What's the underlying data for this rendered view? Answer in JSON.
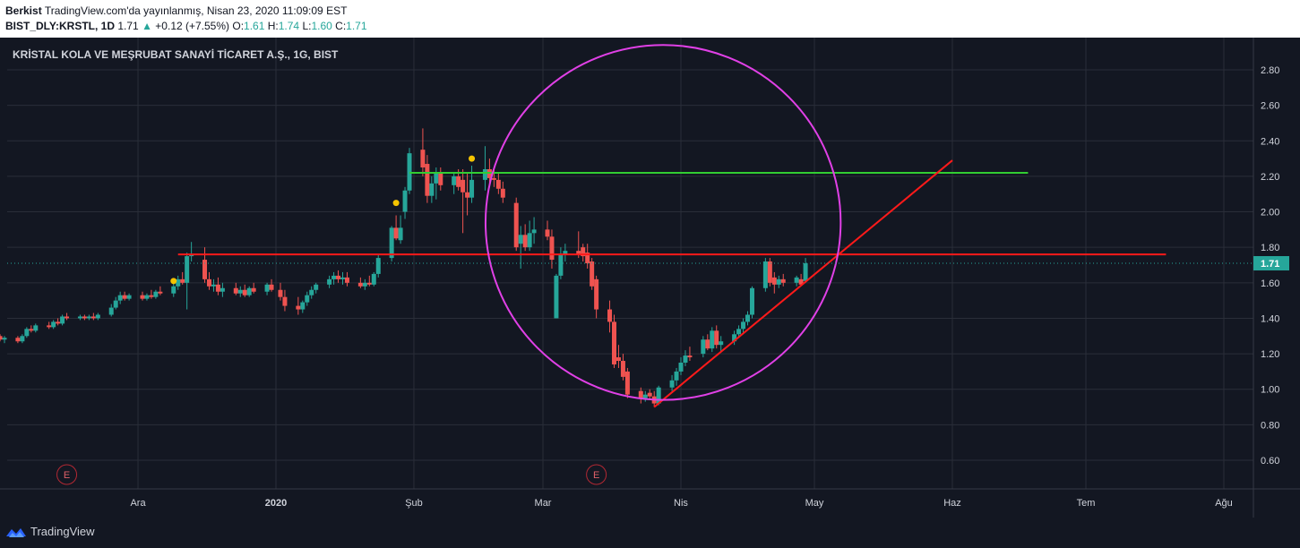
{
  "header": {
    "author": "Berkist",
    "published": "TradingView.com'da yayınlanmış, Nisan 23, 2020 11:09:09 EST",
    "symbol": "BIST_DLY:KRSTL, 1D",
    "last": "1.71",
    "change_arrow": "▲",
    "change": "+0.12 (+7.55%)",
    "o_label": "O:",
    "o_value": "1.61",
    "h_label": "H:",
    "h_value": "1.74",
    "l_label": "L:",
    "l_value": "1.60",
    "c_label": "C:",
    "c_value": "1.71"
  },
  "footer": {
    "brand": "TradingView"
  },
  "colors": {
    "background": "#131722",
    "grid": "#2a2e39",
    "up": "#26a69a",
    "down": "#ef5350",
    "circle": "#e040e6",
    "green_line": "#32cd32",
    "red_line": "#ff1a1a",
    "dot": "#f5c400"
  },
  "chart_data": {
    "type": "candlestick",
    "title": "KRİSTAL KOLA VE MEŞRUBAT SANAYİ TİCARET A.Ş., 1G, BIST",
    "ylim": [
      0.45,
      2.97
    ],
    "y_ticks": [
      "2.80",
      "2.60",
      "2.40",
      "2.20",
      "2.00",
      "1.80",
      "1.60",
      "1.40",
      "1.20",
      "1.00",
      "0.80",
      "0.60"
    ],
    "y_tick_values": [
      2.8,
      2.6,
      2.4,
      2.2,
      2.0,
      1.8,
      1.6,
      1.4,
      1.2,
      1.0,
      0.8,
      0.6
    ],
    "last_price_label": "1.71",
    "last_price": 1.71,
    "x_labels": [
      "Ara",
      "2020",
      "Şub",
      "Mar",
      "Nis",
      "May",
      "Haz",
      "Tem",
      "Ağu"
    ],
    "x_label_dates": [
      "2019-12-01",
      "2020-01-01",
      "2020-02-01",
      "2020-03-01",
      "2020-04-01",
      "2020-05-01",
      "2020-06-01",
      "2020-07-01",
      "2020-08-01"
    ],
    "candles": [
      {
        "t": "2019-10-22",
        "o": 1.19,
        "h": 1.21,
        "l": 1.17,
        "c": 1.2
      },
      {
        "t": "2019-10-23",
        "o": 1.2,
        "h": 1.24,
        "l": 1.19,
        "c": 1.23
      },
      {
        "t": "2019-10-24",
        "o": 1.23,
        "h": 1.25,
        "l": 1.21,
        "c": 1.22
      },
      {
        "t": "2019-10-25",
        "o": 1.22,
        "h": 1.25,
        "l": 1.21,
        "c": 1.24
      },
      {
        "t": "2019-10-28",
        "o": 1.24,
        "h": 1.29,
        "l": 1.23,
        "c": 1.28
      },
      {
        "t": "2019-10-30",
        "o": 1.28,
        "h": 1.32,
        "l": 1.27,
        "c": 1.3
      },
      {
        "t": "2019-10-31",
        "o": 1.3,
        "h": 1.31,
        "l": 1.27,
        "c": 1.28
      },
      {
        "t": "2019-11-01",
        "o": 1.28,
        "h": 1.3,
        "l": 1.26,
        "c": 1.29
      },
      {
        "t": "2019-11-04",
        "o": 1.29,
        "h": 1.3,
        "l": 1.26,
        "c": 1.27
      },
      {
        "t": "2019-11-05",
        "o": 1.27,
        "h": 1.31,
        "l": 1.26,
        "c": 1.3
      },
      {
        "t": "2019-11-06",
        "o": 1.3,
        "h": 1.35,
        "l": 1.29,
        "c": 1.34
      },
      {
        "t": "2019-11-07",
        "o": 1.34,
        "h": 1.36,
        "l": 1.32,
        "c": 1.33
      },
      {
        "t": "2019-11-08",
        "o": 1.33,
        "h": 1.37,
        "l": 1.32,
        "c": 1.36
      },
      {
        "t": "2019-11-11",
        "o": 1.36,
        "h": 1.38,
        "l": 1.34,
        "c": 1.35
      },
      {
        "t": "2019-11-12",
        "o": 1.35,
        "h": 1.39,
        "l": 1.34,
        "c": 1.38
      },
      {
        "t": "2019-11-13",
        "o": 1.38,
        "h": 1.4,
        "l": 1.36,
        "c": 1.37
      },
      {
        "t": "2019-11-14",
        "o": 1.37,
        "h": 1.42,
        "l": 1.36,
        "c": 1.41
      },
      {
        "t": "2019-11-15",
        "o": 1.41,
        "h": 1.43,
        "l": 1.39,
        "c": 1.4
      },
      {
        "t": "2019-11-18",
        "o": 1.4,
        "h": 1.42,
        "l": 1.39,
        "c": 1.41
      },
      {
        "t": "2019-11-19",
        "o": 1.41,
        "h": 1.42,
        "l": 1.39,
        "c": 1.4
      },
      {
        "t": "2019-11-20",
        "o": 1.4,
        "h": 1.42,
        "l": 1.39,
        "c": 1.41
      },
      {
        "t": "2019-11-21",
        "o": 1.41,
        "h": 1.43,
        "l": 1.39,
        "c": 1.4
      },
      {
        "t": "2019-11-22",
        "o": 1.4,
        "h": 1.43,
        "l": 1.39,
        "c": 1.42
      },
      {
        "t": "2019-11-25",
        "o": 1.42,
        "h": 1.48,
        "l": 1.41,
        "c": 1.46
      },
      {
        "t": "2019-11-26",
        "o": 1.46,
        "h": 1.52,
        "l": 1.45,
        "c": 1.5
      },
      {
        "t": "2019-11-27",
        "o": 1.5,
        "h": 1.55,
        "l": 1.48,
        "c": 1.53
      },
      {
        "t": "2019-11-28",
        "o": 1.53,
        "h": 1.55,
        "l": 1.5,
        "c": 1.51
      },
      {
        "t": "2019-11-29",
        "o": 1.51,
        "h": 1.54,
        "l": 1.5,
        "c": 1.53
      },
      {
        "t": "2019-12-02",
        "o": 1.53,
        "h": 1.55,
        "l": 1.5,
        "c": 1.51
      },
      {
        "t": "2019-12-03",
        "o": 1.51,
        "h": 1.54,
        "l": 1.5,
        "c": 1.53
      },
      {
        "t": "2019-12-04",
        "o": 1.53,
        "h": 1.56,
        "l": 1.51,
        "c": 1.52
      },
      {
        "t": "2019-12-05",
        "o": 1.52,
        "h": 1.56,
        "l": 1.51,
        "c": 1.55
      },
      {
        "t": "2019-12-06",
        "o": 1.55,
        "h": 1.58,
        "l": 1.53,
        "c": 1.54
      },
      {
        "t": "2019-12-09",
        "o": 1.54,
        "h": 1.6,
        "l": 1.52,
        "c": 1.58
      },
      {
        "t": "2019-12-10",
        "o": 1.58,
        "h": 1.64,
        "l": 1.56,
        "c": 1.62
      },
      {
        "t": "2019-12-11",
        "o": 1.62,
        "h": 1.66,
        "l": 1.59,
        "c": 1.6
      },
      {
        "t": "2019-12-12",
        "o": 1.6,
        "h": 1.77,
        "l": 1.45,
        "c": 1.75
      },
      {
        "t": "2019-12-13",
        "o": 1.75,
        "h": 1.83,
        "l": 1.72,
        "c": 1.76
      },
      {
        "t": "2019-12-16",
        "o": 1.73,
        "h": 1.8,
        "l": 1.6,
        "c": 1.62
      },
      {
        "t": "2019-12-17",
        "o": 1.62,
        "h": 1.66,
        "l": 1.56,
        "c": 1.58
      },
      {
        "t": "2019-12-18",
        "o": 1.58,
        "h": 1.62,
        "l": 1.55,
        "c": 1.59
      },
      {
        "t": "2019-12-19",
        "o": 1.59,
        "h": 1.63,
        "l": 1.53,
        "c": 1.55
      },
      {
        "t": "2019-12-20",
        "o": 1.55,
        "h": 1.6,
        "l": 1.52,
        "c": 1.57
      },
      {
        "t": "2019-12-23",
        "o": 1.57,
        "h": 1.6,
        "l": 1.53,
        "c": 1.54
      },
      {
        "t": "2019-12-24",
        "o": 1.54,
        "h": 1.58,
        "l": 1.52,
        "c": 1.56
      },
      {
        "t": "2019-12-25",
        "o": 1.56,
        "h": 1.59,
        "l": 1.52,
        "c": 1.53
      },
      {
        "t": "2019-12-26",
        "o": 1.53,
        "h": 1.58,
        "l": 1.52,
        "c": 1.57
      },
      {
        "t": "2019-12-27",
        "o": 1.57,
        "h": 1.6,
        "l": 1.54,
        "c": 1.55
      },
      {
        "t": "2019-12-30",
        "o": 1.55,
        "h": 1.6,
        "l": 1.53,
        "c": 1.59
      },
      {
        "t": "2019-12-31",
        "o": 1.59,
        "h": 1.62,
        "l": 1.55,
        "c": 1.56
      },
      {
        "t": "2020-01-02",
        "o": 1.56,
        "h": 1.6,
        "l": 1.5,
        "c": 1.52
      },
      {
        "t": "2020-01-03",
        "o": 1.52,
        "h": 1.56,
        "l": 1.44,
        "c": 1.47
      },
      {
        "t": "2020-01-06",
        "o": 1.47,
        "h": 1.52,
        "l": 1.42,
        "c": 1.45
      },
      {
        "t": "2020-01-07",
        "o": 1.45,
        "h": 1.5,
        "l": 1.43,
        "c": 1.49
      },
      {
        "t": "2020-01-08",
        "o": 1.49,
        "h": 1.55,
        "l": 1.47,
        "c": 1.53
      },
      {
        "t": "2020-01-09",
        "o": 1.53,
        "h": 1.58,
        "l": 1.51,
        "c": 1.56
      },
      {
        "t": "2020-01-10",
        "o": 1.56,
        "h": 1.6,
        "l": 1.54,
        "c": 1.59
      },
      {
        "t": "2020-01-13",
        "o": 1.59,
        "h": 1.64,
        "l": 1.57,
        "c": 1.62
      },
      {
        "t": "2020-01-14",
        "o": 1.62,
        "h": 1.66,
        "l": 1.59,
        "c": 1.64
      },
      {
        "t": "2020-01-15",
        "o": 1.64,
        "h": 1.67,
        "l": 1.6,
        "c": 1.62
      },
      {
        "t": "2020-01-16",
        "o": 1.62,
        "h": 1.66,
        "l": 1.59,
        "c": 1.63
      },
      {
        "t": "2020-01-17",
        "o": 1.63,
        "h": 1.66,
        "l": 1.58,
        "c": 1.6
      },
      {
        "t": "2020-01-20",
        "o": 1.6,
        "h": 1.63,
        "l": 1.57,
        "c": 1.58
      },
      {
        "t": "2020-01-21",
        "o": 1.58,
        "h": 1.62,
        "l": 1.56,
        "c": 1.6
      },
      {
        "t": "2020-01-22",
        "o": 1.6,
        "h": 1.64,
        "l": 1.58,
        "c": 1.59
      },
      {
        "t": "2020-01-23",
        "o": 1.59,
        "h": 1.66,
        "l": 1.58,
        "c": 1.65
      },
      {
        "t": "2020-01-24",
        "o": 1.65,
        "h": 1.76,
        "l": 1.63,
        "c": 1.74
      },
      {
        "t": "2020-01-27",
        "o": 1.74,
        "h": 1.92,
        "l": 1.72,
        "c": 1.91
      },
      {
        "t": "2020-01-28",
        "o": 1.91,
        "h": 1.98,
        "l": 1.84,
        "c": 1.85
      },
      {
        "t": "2020-01-29",
        "o": 1.84,
        "h": 1.98,
        "l": 1.82,
        "c": 1.91
      },
      {
        "t": "2020-01-30",
        "o": 2.0,
        "h": 2.14,
        "l": 1.96,
        "c": 2.12
      },
      {
        "t": "2020-01-31",
        "o": 2.12,
        "h": 2.36,
        "l": 2.1,
        "c": 2.33
      },
      {
        "t": "2020-02-03",
        "o": 2.35,
        "h": 2.47,
        "l": 2.2,
        "c": 2.25
      },
      {
        "t": "2020-02-04",
        "o": 2.27,
        "h": 2.32,
        "l": 2.05,
        "c": 2.09
      },
      {
        "t": "2020-02-05",
        "o": 2.09,
        "h": 2.2,
        "l": 2.05,
        "c": 2.16
      },
      {
        "t": "2020-02-06",
        "o": 2.16,
        "h": 2.25,
        "l": 2.07,
        "c": 2.22
      },
      {
        "t": "2020-02-07",
        "o": 2.22,
        "h": 2.25,
        "l": 2.12,
        "c": 2.15
      },
      {
        "t": "2020-02-10",
        "o": 2.15,
        "h": 2.22,
        "l": 2.1,
        "c": 2.2
      },
      {
        "t": "2020-02-11",
        "o": 2.2,
        "h": 2.24,
        "l": 2.12,
        "c": 2.14
      },
      {
        "t": "2020-02-12",
        "o": 2.18,
        "h": 2.24,
        "l": 1.88,
        "c": 2.11
      },
      {
        "t": "2020-02-13",
        "o": 2.11,
        "h": 2.22,
        "l": 1.98,
        "c": 2.08
      },
      {
        "t": "2020-02-14",
        "o": 2.08,
        "h": 2.26,
        "l": 2.05,
        "c": 2.18
      },
      {
        "t": "2020-02-17",
        "o": 2.18,
        "h": 2.37,
        "l": 2.12,
        "c": 2.24
      },
      {
        "t": "2020-02-18",
        "o": 2.24,
        "h": 2.3,
        "l": 2.15,
        "c": 2.19
      },
      {
        "t": "2020-02-19",
        "o": 2.19,
        "h": 2.24,
        "l": 2.14,
        "c": 2.18
      },
      {
        "t": "2020-02-20",
        "o": 2.18,
        "h": 2.22,
        "l": 2.1,
        "c": 2.13
      },
      {
        "t": "2020-02-21",
        "o": 2.13,
        "h": 2.17,
        "l": 2.05,
        "c": 2.08
      },
      {
        "t": "2020-02-24",
        "o": 2.05,
        "h": 2.08,
        "l": 1.78,
        "c": 1.8
      },
      {
        "t": "2020-02-25",
        "o": 1.82,
        "h": 1.92,
        "l": 1.68,
        "c": 1.87
      },
      {
        "t": "2020-02-26",
        "o": 1.87,
        "h": 1.93,
        "l": 1.78,
        "c": 1.8
      },
      {
        "t": "2020-02-27",
        "o": 1.8,
        "h": 1.95,
        "l": 1.78,
        "c": 1.88
      },
      {
        "t": "2020-02-28",
        "o": 1.88,
        "h": 1.97,
        "l": 1.82,
        "c": 1.9
      },
      {
        "t": "2020-03-02",
        "o": 1.9,
        "h": 1.95,
        "l": 1.84,
        "c": 1.86
      },
      {
        "t": "2020-03-03",
        "o": 1.86,
        "h": 1.9,
        "l": 1.68,
        "c": 1.73
      },
      {
        "t": "2020-03-04",
        "o": 1.4,
        "h": 1.65,
        "l": 1.4,
        "c": 1.64
      },
      {
        "t": "2020-03-05",
        "o": 1.64,
        "h": 1.8,
        "l": 1.62,
        "c": 1.76
      },
      {
        "t": "2020-03-06",
        "o": 1.76,
        "h": 1.82,
        "l": 1.72,
        "c": 1.78
      },
      {
        "t": "2020-03-09",
        "o": 1.78,
        "h": 1.89,
        "l": 1.74,
        "c": 1.76
      },
      {
        "t": "2020-03-10",
        "o": 1.8,
        "h": 1.82,
        "l": 1.72,
        "c": 1.75
      },
      {
        "t": "2020-03-11",
        "o": 1.77,
        "h": 1.82,
        "l": 1.68,
        "c": 1.71
      },
      {
        "t": "2020-03-12",
        "o": 1.72,
        "h": 1.74,
        "l": 1.56,
        "c": 1.58
      },
      {
        "t": "2020-03-13",
        "o": 1.62,
        "h": 1.64,
        "l": 1.4,
        "c": 1.45
      },
      {
        "t": "2020-03-16",
        "o": 1.45,
        "h": 1.5,
        "l": 1.32,
        "c": 1.38
      },
      {
        "t": "2020-03-17",
        "o": 1.38,
        "h": 1.42,
        "l": 1.12,
        "c": 1.14
      },
      {
        "t": "2020-03-18",
        "o": 1.18,
        "h": 1.25,
        "l": 1.12,
        "c": 1.16
      },
      {
        "t": "2020-03-19",
        "o": 1.16,
        "h": 1.2,
        "l": 1.05,
        "c": 1.07
      },
      {
        "t": "2020-03-20",
        "o": 1.1,
        "h": 1.12,
        "l": 0.95,
        "c": 0.97
      },
      {
        "t": "2020-03-23",
        "o": 0.99,
        "h": 1.01,
        "l": 0.92,
        "c": 0.95
      },
      {
        "t": "2020-03-24",
        "o": 0.95,
        "h": 0.99,
        "l": 0.93,
        "c": 0.97
      },
      {
        "t": "2020-03-25",
        "o": 0.98,
        "h": 1.0,
        "l": 0.94,
        "c": 0.96
      },
      {
        "t": "2020-03-26",
        "o": 0.96,
        "h": 0.99,
        "l": 0.9,
        "c": 0.92
      },
      {
        "t": "2020-03-27",
        "o": 0.92,
        "h": 1.02,
        "l": 0.91,
        "c": 1.01
      },
      {
        "t": "2020-03-30",
        "o": 1.01,
        "h": 1.08,
        "l": 0.99,
        "c": 1.05
      },
      {
        "t": "2020-03-31",
        "o": 1.05,
        "h": 1.12,
        "l": 1.02,
        "c": 1.1
      },
      {
        "t": "2020-04-01",
        "o": 1.1,
        "h": 1.18,
        "l": 1.08,
        "c": 1.15
      },
      {
        "t": "2020-04-02",
        "o": 1.15,
        "h": 1.22,
        "l": 1.13,
        "c": 1.19
      },
      {
        "t": "2020-04-03",
        "o": 1.19,
        "h": 1.24,
        "l": 1.16,
        "c": 1.18
      },
      {
        "t": "2020-04-06",
        "o": 1.2,
        "h": 1.3,
        "l": 1.18,
        "c": 1.28
      },
      {
        "t": "2020-04-07",
        "o": 1.28,
        "h": 1.31,
        "l": 1.22,
        "c": 1.23
      },
      {
        "t": "2020-04-08",
        "o": 1.23,
        "h": 1.35,
        "l": 1.21,
        "c": 1.33
      },
      {
        "t": "2020-04-09",
        "o": 1.33,
        "h": 1.36,
        "l": 1.23,
        "c": 1.25
      },
      {
        "t": "2020-04-10",
        "o": 1.25,
        "h": 1.3,
        "l": 1.21,
        "c": 1.27
      },
      {
        "t": "2020-04-13",
        "o": 1.27,
        "h": 1.33,
        "l": 1.25,
        "c": 1.31
      },
      {
        "t": "2020-04-14",
        "o": 1.31,
        "h": 1.36,
        "l": 1.29,
        "c": 1.34
      },
      {
        "t": "2020-04-15",
        "o": 1.34,
        "h": 1.4,
        "l": 1.32,
        "c": 1.38
      },
      {
        "t": "2020-04-16",
        "o": 1.38,
        "h": 1.44,
        "l": 1.36,
        "c": 1.42
      },
      {
        "t": "2020-04-17",
        "o": 1.42,
        "h": 1.58,
        "l": 1.4,
        "c": 1.57
      },
      {
        "t": "2020-04-20",
        "o": 1.57,
        "h": 1.74,
        "l": 1.55,
        "c": 1.72
      },
      {
        "t": "2020-04-21",
        "o": 1.72,
        "h": 1.74,
        "l": 1.58,
        "c": 1.6
      },
      {
        "t": "2020-04-22",
        "o": 1.63,
        "h": 1.66,
        "l": 1.54,
        "c": 1.59
      },
      {
        "t": "2020-04-23",
        "o": 1.59,
        "h": 1.64,
        "l": 1.57,
        "c": 1.62
      },
      {
        "t": "2020-04-24",
        "o": 1.62,
        "h": 1.65,
        "l": 1.58,
        "c": 1.6
      },
      {
        "t": "2020-04-27",
        "o": 1.6,
        "h": 1.64,
        "l": 1.58,
        "c": 1.63
      },
      {
        "t": "2020-04-28",
        "o": 1.62,
        "h": 1.65,
        "l": 1.59,
        "c": 1.59
      },
      {
        "t": "2020-04-29",
        "o": 1.61,
        "h": 1.74,
        "l": 1.6,
        "c": 1.71
      }
    ],
    "markers": [
      {
        "type": "dot",
        "t": "2019-12-09",
        "price": 1.61
      },
      {
        "type": "dot",
        "t": "2020-01-28",
        "price": 2.05
      },
      {
        "type": "dot",
        "t": "2020-02-14",
        "price": 2.3
      },
      {
        "type": "earnings",
        "t": "2019-11-15",
        "label": "E"
      },
      {
        "type": "earnings",
        "t": "2020-03-13",
        "label": "E"
      }
    ],
    "drawings": {
      "green_horizontal": {
        "price": 2.22,
        "from": "2020-01-31",
        "to": "2020-06-18"
      },
      "red_horizontal": {
        "price": 1.76,
        "from": "2019-12-10",
        "to": "2020-07-19"
      },
      "red_trendline": {
        "from_t": "2020-03-26",
        "from_p": 0.9,
        "to_t": "2020-06-01",
        "to_p": 2.29
      },
      "circle": {
        "center_t": "2020-03-28",
        "center_p": 1.94,
        "radius_price": 1.0
      }
    }
  }
}
